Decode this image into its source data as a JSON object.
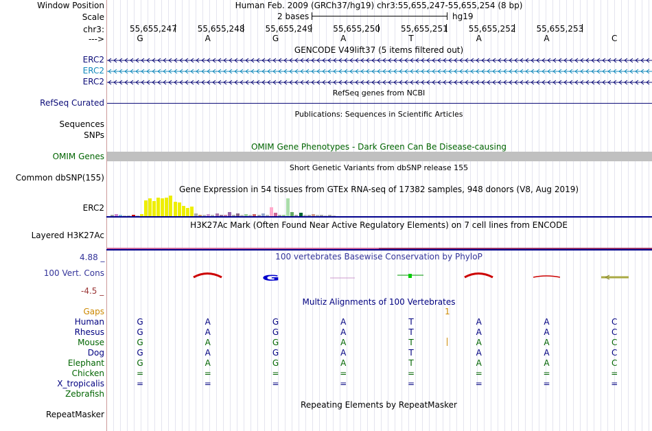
{
  "header": {
    "window_position_label": "Window Position",
    "window_position_value": "Human Feb. 2009 (GRCh37/hg19)   chr3:55,655,247-55,655,254 (8 bp)",
    "scale_label": "Scale",
    "scale_text": "2 bases",
    "assembly": "hg19",
    "chrom_label": "chr3:",
    "strand_label": "--->",
    "positions": [
      "55,655,247",
      "55,655,248",
      "55,655,249",
      "55,655,250",
      "55,655,251",
      "55,655,252",
      "55,655,253"
    ],
    "bases": [
      "G",
      "A",
      "G",
      "A",
      "T",
      "A",
      "A",
      "C"
    ]
  },
  "tracks": {
    "gencode": {
      "title": "GENCODE V49lift37 (5 items filtered out)",
      "items": [
        "ERC2",
        "ERC2",
        "ERC2"
      ],
      "colors": [
        "#0c0c78",
        "#1188bb",
        "#0c0c78"
      ]
    },
    "refseq": {
      "title": "RefSeq genes from NCBI",
      "label": "RefSeq Curated"
    },
    "publications": {
      "title": "Publications: Sequences in Scientific Articles",
      "labels": [
        "Sequences",
        "SNPs"
      ]
    },
    "omim": {
      "title": "OMIM Gene Phenotypes - Dark Green Can Be Disease-causing",
      "label": "OMIM Genes",
      "color": "#006400"
    },
    "dbsnp": {
      "title": "Short Genetic Variants from dbSNP release 155",
      "label": "Common dbSNP(155)"
    },
    "gtex": {
      "title": "Gene Expression in 54 tissues from GTEx RNA-seq of 17382 samples, 948 donors (V8, Aug 2019)",
      "label": "ERC2",
      "bars": [
        {
          "v": 0.06,
          "c": "#a0a0a0"
        },
        {
          "v": 0.1,
          "c": "#cc88cc"
        },
        {
          "v": 0.05,
          "c": "#88bbdd"
        },
        {
          "v": 0.04,
          "c": "#bbbbbb"
        },
        {
          "v": 0.03,
          "c": "#aaaaaa"
        },
        {
          "v": 0.06,
          "c": "#cc0000"
        },
        {
          "v": 0.03,
          "c": "#bbbbbb"
        },
        {
          "v": 0.1,
          "c": "#eeee00"
        },
        {
          "v": 0.78,
          "c": "#eeee00"
        },
        {
          "v": 0.88,
          "c": "#eeee00"
        },
        {
          "v": 0.72,
          "c": "#eeee00"
        },
        {
          "v": 0.9,
          "c": "#eeee00"
        },
        {
          "v": 0.85,
          "c": "#eeee00"
        },
        {
          "v": 0.9,
          "c": "#eeee00"
        },
        {
          "v": 1.0,
          "c": "#eeee00"
        },
        {
          "v": 0.7,
          "c": "#eeee00"
        },
        {
          "v": 0.66,
          "c": "#eeee00"
        },
        {
          "v": 0.5,
          "c": "#eeee00"
        },
        {
          "v": 0.4,
          "c": "#eeee00"
        },
        {
          "v": 0.46,
          "c": "#eeee00"
        },
        {
          "v": 0.14,
          "c": "#aaaaaa"
        },
        {
          "v": 0.06,
          "c": "#cc9966"
        },
        {
          "v": 0.08,
          "c": "#bbbbbb"
        },
        {
          "v": 0.1,
          "c": "#cc99cc"
        },
        {
          "v": 0.05,
          "c": "#bbbbbb"
        },
        {
          "v": 0.12,
          "c": "#aa77aa"
        },
        {
          "v": 0.08,
          "c": "#997799"
        },
        {
          "v": 0.06,
          "c": "#cc88aa"
        },
        {
          "v": 0.2,
          "c": "#9966aa"
        },
        {
          "v": 0.08,
          "c": "#aaaaaa"
        },
        {
          "v": 0.12,
          "c": "#886688"
        },
        {
          "v": 0.07,
          "c": "#bbbbbb"
        },
        {
          "v": 0.1,
          "c": "#99cc99"
        },
        {
          "v": 0.05,
          "c": "#bbbbbb"
        },
        {
          "v": 0.1,
          "c": "#cc6666"
        },
        {
          "v": 0.06,
          "c": "#aaaaaa"
        },
        {
          "v": 0.14,
          "c": "#99aacc"
        },
        {
          "v": 0.06,
          "c": "#bbbbbb"
        },
        {
          "v": 0.44,
          "c": "#ffaacc"
        },
        {
          "v": 0.16,
          "c": "#cc6699"
        },
        {
          "v": 0.06,
          "c": "#aaaaaa"
        },
        {
          "v": 0.08,
          "c": "#99cc99"
        },
        {
          "v": 0.86,
          "c": "#aaddaa"
        },
        {
          "v": 0.2,
          "c": "#66aa66"
        },
        {
          "v": 0.06,
          "c": "#aaaaaa"
        },
        {
          "v": 0.18,
          "c": "#006633"
        },
        {
          "v": 0.08,
          "c": "#bbbbbb"
        },
        {
          "v": 0.06,
          "c": "#aaaaaa"
        },
        {
          "v": 0.1,
          "c": "#cc9988"
        },
        {
          "v": 0.05,
          "c": "#bbbbbb"
        },
        {
          "v": 0.06,
          "c": "#aaaaaa"
        },
        {
          "v": 0.04,
          "c": "#bbbbbb"
        },
        {
          "v": 0.05,
          "c": "#aaaaaa"
        },
        {
          "v": 0.04,
          "c": "#bbbbbb"
        }
      ]
    },
    "h3k27ac": {
      "title": "H3K27Ac Mark (Often Found Near Active Regulatory Elements) on 7 cell lines from ENCODE",
      "label": "Layered H3K27Ac"
    },
    "phylop": {
      "title": "100 vertebrates Basewise Conservation by PhyloP",
      "label": "100 Vert. Cons",
      "max_label": "4.88 _",
      "min_label": "-4.5 _",
      "title_color": "#333399"
    },
    "multiz": {
      "title": "Multiz Alignments of 100 Vertebrates",
      "gaps_label": "Gaps",
      "gap_count": "1",
      "species": [
        {
          "name": "Human",
          "color": "#000080",
          "bases": [
            "G",
            "A",
            "G",
            "A",
            "T",
            "A",
            "A",
            "C"
          ]
        },
        {
          "name": "Rhesus",
          "color": "#000080",
          "bases": [
            "G",
            "A",
            "G",
            "A",
            "T",
            "A",
            "A",
            "C"
          ]
        },
        {
          "name": "Mouse",
          "color": "#006400",
          "bases": [
            "G",
            "A",
            "G",
            "A",
            "T",
            "A",
            "A",
            "C"
          ]
        },
        {
          "name": "Dog",
          "color": "#000080",
          "bases": [
            "G",
            "A",
            "G",
            "A",
            "T",
            "A",
            "A",
            "C"
          ]
        },
        {
          "name": "Elephant",
          "color": "#006400",
          "bases": [
            "G",
            "A",
            "G",
            "A",
            "T",
            "A",
            "A",
            "C"
          ]
        },
        {
          "name": "Chicken",
          "color": "#006400",
          "bases": [
            "=",
            "=",
            "=",
            "=",
            "=",
            "=",
            "=",
            "="
          ]
        },
        {
          "name": "X_tropicalis",
          "color": "#000080",
          "bases": [
            "=",
            "=",
            "=",
            "=",
            "=",
            "=",
            "=",
            "="
          ]
        },
        {
          "name": "Zebrafish",
          "color": "#006400",
          "bases": [
            "",
            "",
            "",
            "",
            "",
            "",
            "",
            ""
          ]
        }
      ]
    },
    "repeatmasker": {
      "title": "Repeating Elements by RepeatMasker",
      "label": "RepeatMasker"
    }
  }
}
